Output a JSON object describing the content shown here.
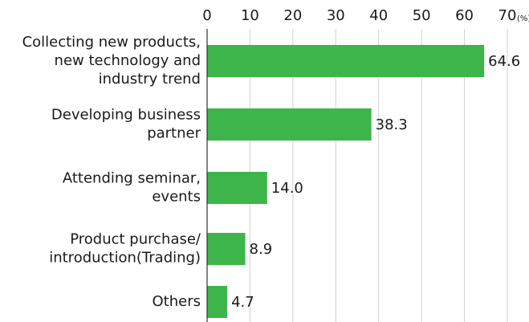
{
  "chart_data": {
    "type": "bar",
    "orientation": "horizontal",
    "categories": [
      [
        "Collecting new products,",
        "new technology and",
        "industry trend"
      ],
      [
        "Developing business",
        "partner"
      ],
      [
        "Attending seminar,",
        "events"
      ],
      [
        "Product purchase/",
        "introduction(Trading)"
      ],
      [
        "Others"
      ]
    ],
    "values": [
      64.6,
      38.3,
      14.0,
      8.9,
      4.7
    ],
    "value_labels": [
      "64.6",
      "38.3",
      "14.0",
      "8.9",
      "4.7"
    ],
    "color": "#3db54a",
    "xlim": [
      0,
      70
    ],
    "xticks": [
      0,
      10,
      20,
      30,
      40,
      50,
      60,
      70
    ],
    "x_unit": "(%)",
    "grid": true
  }
}
